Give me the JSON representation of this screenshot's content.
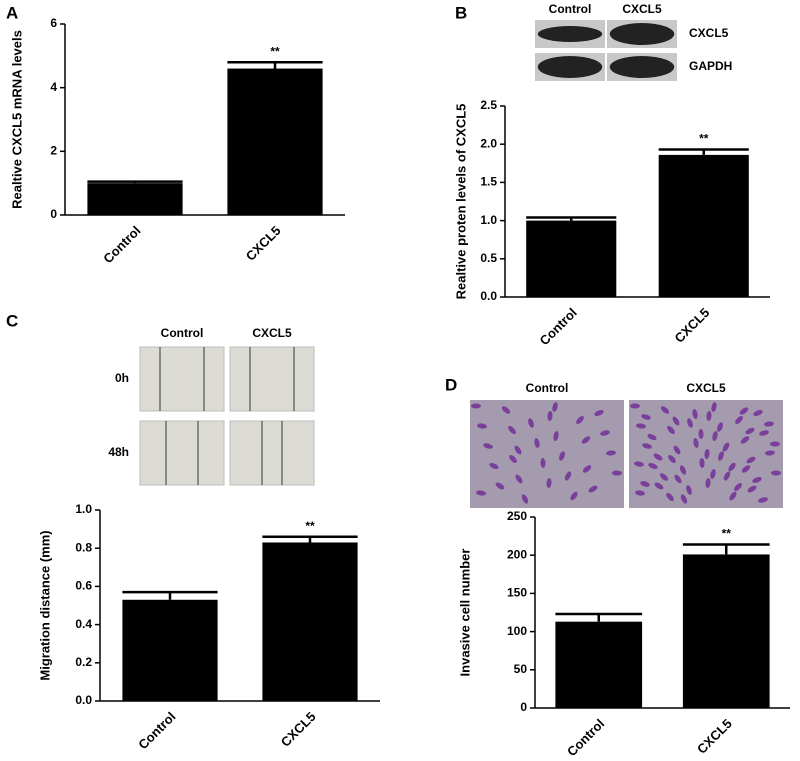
{
  "chart_data": [
    {
      "type": "bar",
      "panel": "A",
      "ylabel": "Realtive CXCL5 mRNA levels",
      "categories": [
        "Control",
        "CXCL5"
      ],
      "values": [
        1.0,
        4.6
      ],
      "errors": [
        0.05,
        0.2
      ],
      "color": "#000000",
      "annotation": "**",
      "ylim": [
        0,
        6
      ],
      "yticks": [
        0,
        2,
        4,
        6
      ]
    },
    {
      "type": "bar",
      "panel": "B",
      "ylabel": "Realtive proten levels of CXCL5",
      "categories": [
        "Control",
        "CXCL5"
      ],
      "values": [
        1.0,
        1.86
      ],
      "errors": [
        0.04,
        0.07
      ],
      "color": "#000000",
      "annotation": "**",
      "ylim": [
        0,
        2.5
      ],
      "yticks": [
        {
          "value": 0,
          "label": "0.0"
        },
        0.5,
        {
          "value": 1,
          "label": "1.0"
        },
        1.5,
        {
          "value": 2,
          "label": "2.0"
        },
        2.5
      ],
      "image_labels": {
        "columns": [
          "Control",
          "CXCL5"
        ],
        "rows": [
          "CXCL5",
          "GAPDH"
        ]
      }
    },
    {
      "type": "bar",
      "panel": "C",
      "ylabel": "Migration distance (mm)",
      "categories": [
        "Control",
        "CXCL5"
      ],
      "values": [
        0.53,
        0.83
      ],
      "errors": [
        0.04,
        0.03
      ],
      "color": "#000000",
      "annotation": "**",
      "ylim": [
        0,
        1
      ],
      "yticks": [
        {
          "value": 0,
          "label": "0.0"
        },
        0.2,
        0.4,
        0.6,
        0.8,
        {
          "value": 1,
          "label": "1.0"
        }
      ],
      "image_labels": {
        "columns": [
          "Control",
          "CXCL5"
        ],
        "rows": [
          "0h",
          "48h"
        ]
      }
    },
    {
      "type": "bar",
      "panel": "D",
      "ylabel": "Invasive cell number",
      "categories": [
        "Control",
        "CXCL5"
      ],
      "values": [
        113,
        201
      ],
      "errors": [
        10,
        13
      ],
      "color": "#000000",
      "annotation": "**",
      "ylim": [
        0,
        250
      ],
      "yticks": [
        0,
        50,
        100,
        150,
        200,
        250
      ],
      "image_labels": {
        "columns": [
          "Control",
          "CXCL5"
        ]
      }
    }
  ]
}
